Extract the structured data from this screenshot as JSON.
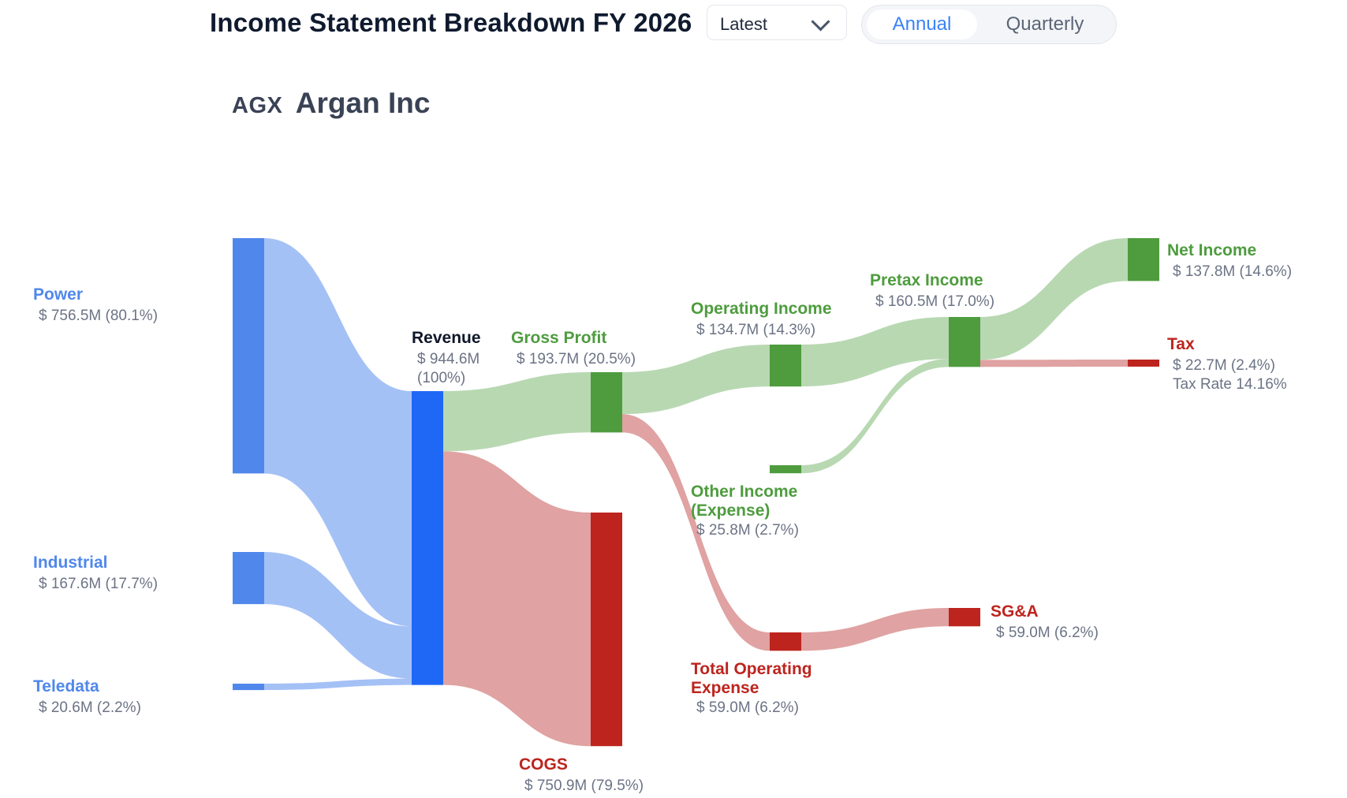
{
  "header": {
    "title": "Income Statement Breakdown FY 2026",
    "period_select": {
      "value": "Latest"
    },
    "view_toggle": {
      "annual": "Annual",
      "quarterly": "Quarterly",
      "selected": "Annual"
    }
  },
  "company": {
    "ticker": "AGX",
    "name": "Argan Inc"
  },
  "colors": {
    "segment": "#5087eb",
    "revenue": "#1f68f5",
    "profit": "#4e9c3e",
    "cost": "#bd241e",
    "segment_flow": "#a4c1f6",
    "profit_flow": "#b8d8b2",
    "cost_flow": "#e0a2a2",
    "value_text": "#6b7385",
    "revenue_label": "#0f172a"
  },
  "chart_data": {
    "type": "sankey",
    "units": "$M",
    "nodes": [
      {
        "id": "power",
        "label": "Power",
        "value_text": "$ 756.5M (80.1%)",
        "value": 756.5,
        "percent": 80.1,
        "kind": "segment"
      },
      {
        "id": "industrial",
        "label": "Industrial",
        "value_text": "$ 167.6M (17.7%)",
        "value": 167.6,
        "percent": 17.7,
        "kind": "segment"
      },
      {
        "id": "teledata",
        "label": "Teledata",
        "value_text": "$ 20.6M (2.2%)",
        "value": 20.6,
        "percent": 2.2,
        "kind": "segment"
      },
      {
        "id": "revenue",
        "label": "Revenue",
        "value_text": "$ 944.6M",
        "value_text2": "(100%)",
        "value": 944.6,
        "percent": 100,
        "kind": "revenue"
      },
      {
        "id": "gross_profit",
        "label": "Gross Profit",
        "value_text": "$ 193.7M (20.5%)",
        "value": 193.7,
        "percent": 20.5,
        "kind": "profit"
      },
      {
        "id": "cogs",
        "label": "COGS",
        "value_text": "$ 750.9M (79.5%)",
        "value": 750.9,
        "percent": 79.5,
        "kind": "cost"
      },
      {
        "id": "operating_income",
        "label": "Operating Income",
        "value_text": "$ 134.7M (14.3%)",
        "value": 134.7,
        "percent": 14.3,
        "kind": "profit"
      },
      {
        "id": "other_income",
        "label": "Other Income (Expense)",
        "label_lines": [
          "Other Income",
          "(Expense)"
        ],
        "value_text": "$ 25.8M (2.7%)",
        "value": 25.8,
        "percent": 2.7,
        "kind": "profit"
      },
      {
        "id": "total_opex",
        "label": "Total Operating Expense",
        "label_lines": [
          "Total Operating",
          "Expense"
        ],
        "value_text": "$ 59.0M (6.2%)",
        "value": 59.0,
        "percent": 6.2,
        "kind": "cost"
      },
      {
        "id": "pretax_income",
        "label": "Pretax Income",
        "value_text": "$ 160.5M (17.0%)",
        "value": 160.5,
        "percent": 17.0,
        "kind": "profit"
      },
      {
        "id": "sga",
        "label": "SG&A",
        "value_text": "$ 59.0M (6.2%)",
        "value": 59.0,
        "percent": 6.2,
        "kind": "cost"
      },
      {
        "id": "net_income",
        "label": "Net Income",
        "value_text": "$ 137.8M (14.6%)",
        "value": 137.8,
        "percent": 14.6,
        "kind": "profit"
      },
      {
        "id": "tax",
        "label": "Tax",
        "value_text": "$ 22.7M (2.4%)",
        "value_text2": "Tax Rate 14.16%",
        "value": 22.7,
        "percent": 2.4,
        "kind": "cost"
      }
    ],
    "links": [
      {
        "source": "power",
        "target": "revenue",
        "value": 756.5
      },
      {
        "source": "industrial",
        "target": "revenue",
        "value": 167.6
      },
      {
        "source": "teledata",
        "target": "revenue",
        "value": 20.6
      },
      {
        "source": "revenue",
        "target": "gross_profit",
        "value": 193.7
      },
      {
        "source": "revenue",
        "target": "cogs",
        "value": 750.9
      },
      {
        "source": "gross_profit",
        "target": "operating_income",
        "value": 134.7
      },
      {
        "source": "gross_profit",
        "target": "total_opex",
        "value": 59.0
      },
      {
        "source": "operating_income",
        "target": "pretax_income",
        "value": 134.7
      },
      {
        "source": "other_income",
        "target": "pretax_income",
        "value": 25.8
      },
      {
        "source": "total_opex",
        "target": "sga",
        "value": 59.0
      },
      {
        "source": "pretax_income",
        "target": "net_income",
        "value": 137.8
      },
      {
        "source": "pretax_income",
        "target": "tax",
        "value": 22.7
      }
    ]
  }
}
